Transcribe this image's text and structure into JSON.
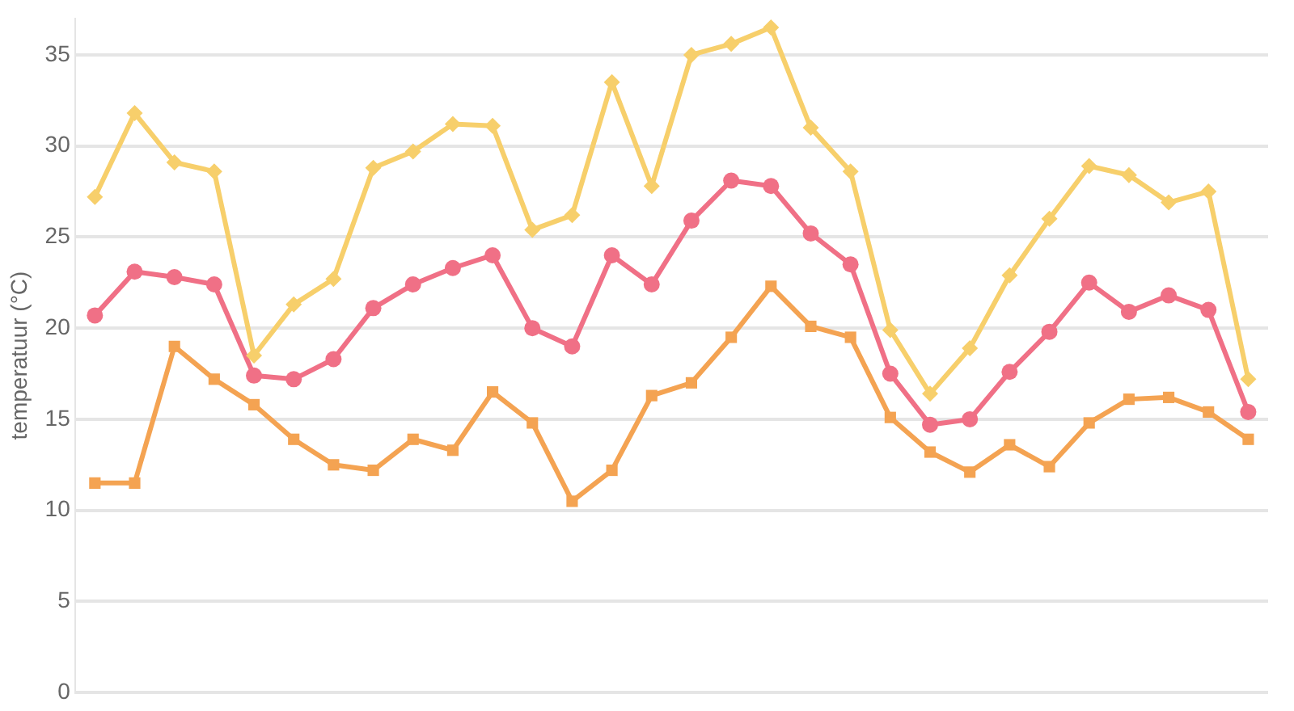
{
  "chart_data": {
    "type": "line",
    "ylabel": "temperatuur (°C)",
    "categories": [
      null,
      null,
      null,
      null,
      null,
      null,
      null,
      null,
      null,
      null,
      null,
      null,
      null,
      null,
      null,
      null,
      null,
      null,
      null,
      null,
      null,
      null,
      null,
      null,
      null,
      null,
      null,
      null,
      null,
      null
    ],
    "series": [
      {
        "color": "#f7cf6b",
        "marker": "diamond",
        "values": [
          27.2,
          31.8,
          29.1,
          28.6,
          18.5,
          21.3,
          22.7,
          28.8,
          29.7,
          31.2,
          31.1,
          25.4,
          26.2,
          33.5,
          27.8,
          35.0,
          35.6,
          36.5,
          31.0,
          28.6,
          19.9,
          16.4,
          18.9,
          22.9,
          26.0,
          28.9,
          28.4,
          26.9,
          27.5,
          17.2
        ]
      },
      {
        "color": "#f07086",
        "marker": "circle",
        "values": [
          20.7,
          23.1,
          22.8,
          22.4,
          17.4,
          17.2,
          18.3,
          21.1,
          22.4,
          23.3,
          24.0,
          20.0,
          19.0,
          24.0,
          22.4,
          25.9,
          28.1,
          27.8,
          25.2,
          23.5,
          17.5,
          14.7,
          15.0,
          17.6,
          19.8,
          22.5,
          20.9,
          21.8,
          21.0,
          15.4
        ]
      },
      {
        "color": "#f4a352",
        "marker": "square",
        "values": [
          11.5,
          11.5,
          19.0,
          17.2,
          15.8,
          13.9,
          12.5,
          12.2,
          13.9,
          13.3,
          16.5,
          14.8,
          10.5,
          12.2,
          16.3,
          17.0,
          19.5,
          22.3,
          20.1,
          19.5,
          15.1,
          13.2,
          12.1,
          13.6,
          12.4,
          14.8,
          16.1,
          16.2,
          15.4,
          13.9
        ]
      }
    ],
    "ylim": [
      0,
      37
    ],
    "yticks": [
      0,
      5,
      10,
      15,
      20,
      25,
      30,
      35
    ],
    "grid": "y",
    "tick_labels": "y",
    "legend": false,
    "line_style": "solid"
  }
}
